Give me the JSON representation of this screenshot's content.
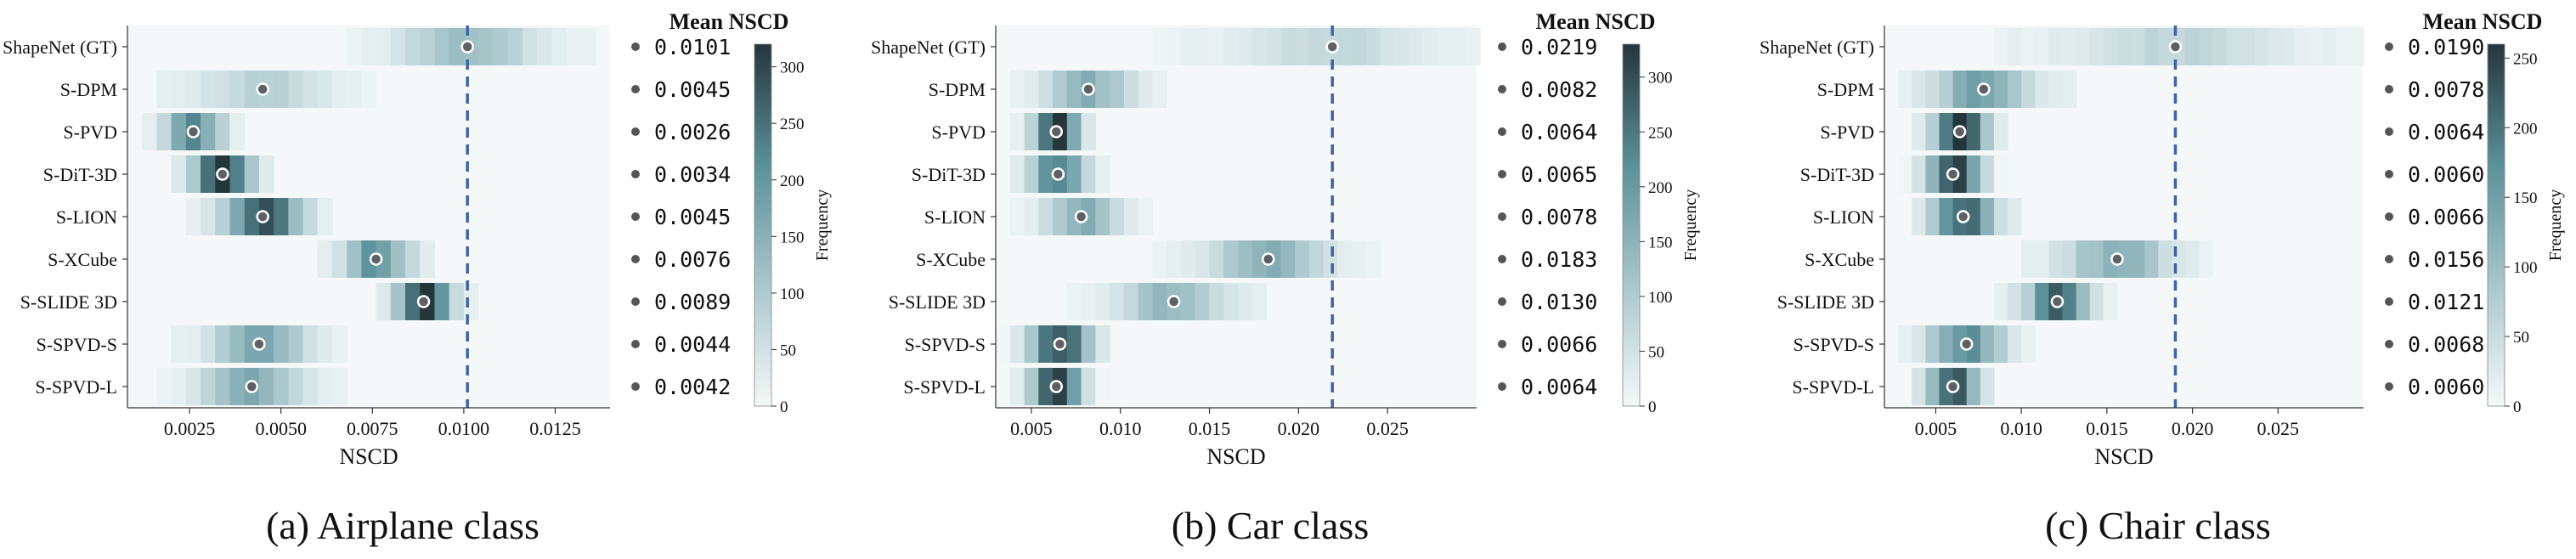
{
  "panels": [
    {
      "caption": "(a) Airplane class",
      "xlabel": "NSCD",
      "mean_title": "Mean NSCD",
      "colorbar_label": "Frequency",
      "colormap": [
        "#f4f8f8",
        "#a9c7cb",
        "#5b9099",
        "#25363b"
      ],
      "gt_line_color": "#3f62a8",
      "chart_data": {
        "type": "heatmap",
        "categories": [
          "ShapeNet (GT)",
          "S-DPM",
          "S-PVD",
          "S-DiT-3D",
          "S-LION",
          "S-XCube",
          "S-SLIDE 3D",
          "S-SPVD-S",
          "S-SPVD-L"
        ],
        "xlim": [
          0.0008,
          0.014
        ],
        "xticks": [
          0.0025,
          0.005,
          0.0075,
          0.01,
          0.0125
        ],
        "xtick_labels": [
          "0.0025",
          "0.0050",
          "0.0075",
          "0.0100",
          "0.0125"
        ],
        "bin_width": 0.0004,
        "colorbar_max": 320,
        "colorbar_ticks": [
          0,
          50,
          100,
          150,
          200,
          250,
          300
        ],
        "colorbar_tick_labels": [
          "0",
          "50",
          "100",
          "150",
          "200",
          "250",
          "300"
        ],
        "gt_mean": 0.0101,
        "means": [
          0.0101,
          0.0045,
          0.0026,
          0.0034,
          0.0045,
          0.0076,
          0.0089,
          0.0044,
          0.0042
        ],
        "mean_labels": [
          "0.0101",
          "0.0045",
          "0.0026",
          "0.0034",
          "0.0045",
          "0.0076",
          "0.0089",
          "0.0044",
          "0.0042"
        ],
        "row_spread": [
          0.0012,
          0.0011,
          0.0005,
          0.0005,
          0.0007,
          0.0006,
          0.0005,
          0.0009,
          0.0009
        ],
        "row_peak": [
          120,
          75,
          230,
          320,
          280,
          200,
          310,
          140,
          150
        ]
      }
    },
    {
      "caption": "(b) Car class",
      "xlabel": "NSCD",
      "mean_title": "Mean NSCD",
      "colorbar_label": "Frequency",
      "colormap": [
        "#f4f8f8",
        "#a9c7cb",
        "#5b9099",
        "#25363b"
      ],
      "gt_line_color": "#3f62a8",
      "chart_data": {
        "type": "heatmap",
        "categories": [
          "ShapeNet (GT)",
          "S-DPM",
          "S-PVD",
          "S-DiT-3D",
          "S-LION",
          "S-XCube",
          "S-SLIDE 3D",
          "S-SPVD-S",
          "S-SPVD-L"
        ],
        "xlim": [
          0.003,
          0.03
        ],
        "xticks": [
          0.005,
          0.01,
          0.015,
          0.02,
          0.025
        ],
        "xtick_labels": [
          "0.005",
          "0.010",
          "0.015",
          "0.020",
          "0.025"
        ],
        "bin_width": 0.0008,
        "colorbar_max": 330,
        "colorbar_ticks": [
          0,
          50,
          100,
          150,
          200,
          250,
          300
        ],
        "colorbar_tick_labels": [
          "0",
          "50",
          "100",
          "150",
          "200",
          "250",
          "300"
        ],
        "gt_mean": 0.0219,
        "means": [
          0.0219,
          0.0082,
          0.0064,
          0.0065,
          0.0078,
          0.0183,
          0.013,
          0.0066,
          0.0064
        ],
        "mean_labels": [
          "0.0219",
          "0.0082",
          "0.0064",
          "0.0065",
          "0.0078",
          "0.0183",
          "0.0130",
          "0.0066",
          "0.0064"
        ],
        "row_spread": [
          0.0035,
          0.0016,
          0.0008,
          0.001,
          0.0013,
          0.0022,
          0.002,
          0.0011,
          0.0009
        ],
        "row_peak": [
          60,
          140,
          330,
          250,
          150,
          140,
          130,
          280,
          320
        ]
      }
    },
    {
      "caption": "(c) Chair class",
      "xlabel": "NSCD",
      "mean_title": "Mean NSCD",
      "colorbar_label": "Frequency",
      "colormap": [
        "#f4f8f8",
        "#a9c7cb",
        "#5b9099",
        "#25363b"
      ],
      "gt_line_color": "#3f62a8",
      "chart_data": {
        "type": "heatmap",
        "categories": [
          "ShapeNet (GT)",
          "S-DPM",
          "S-PVD",
          "S-DiT-3D",
          "S-LION",
          "S-XCube",
          "S-SLIDE 3D",
          "S-SPVD-S",
          "S-SPVD-L"
        ],
        "xlim": [
          0.002,
          0.03
        ],
        "xticks": [
          0.005,
          0.01,
          0.015,
          0.02,
          0.025
        ],
        "xtick_labels": [
          "0.005",
          "0.010",
          "0.015",
          "0.020",
          "0.025"
        ],
        "bin_width": 0.0008,
        "colorbar_max": 260,
        "colorbar_ticks": [
          0,
          50,
          100,
          150,
          200,
          250
        ],
        "colorbar_tick_labels": [
          "0",
          "50",
          "100",
          "150",
          "200",
          "250"
        ],
        "gt_mean": 0.019,
        "means": [
          0.019,
          0.0078,
          0.0064,
          0.006,
          0.0066,
          0.0156,
          0.0121,
          0.0068,
          0.006
        ],
        "mean_labels": [
          "0.0190",
          "0.0078",
          "0.0064",
          "0.0060",
          "0.0066",
          "0.0156",
          "0.0121",
          "0.0068",
          "0.0060"
        ],
        "row_spread": [
          0.0038,
          0.0018,
          0.001,
          0.001,
          0.0012,
          0.002,
          0.0012,
          0.0014,
          0.0009
        ],
        "row_peak": [
          50,
          140,
          260,
          240,
          200,
          110,
          190,
          160,
          240
        ]
      }
    }
  ]
}
